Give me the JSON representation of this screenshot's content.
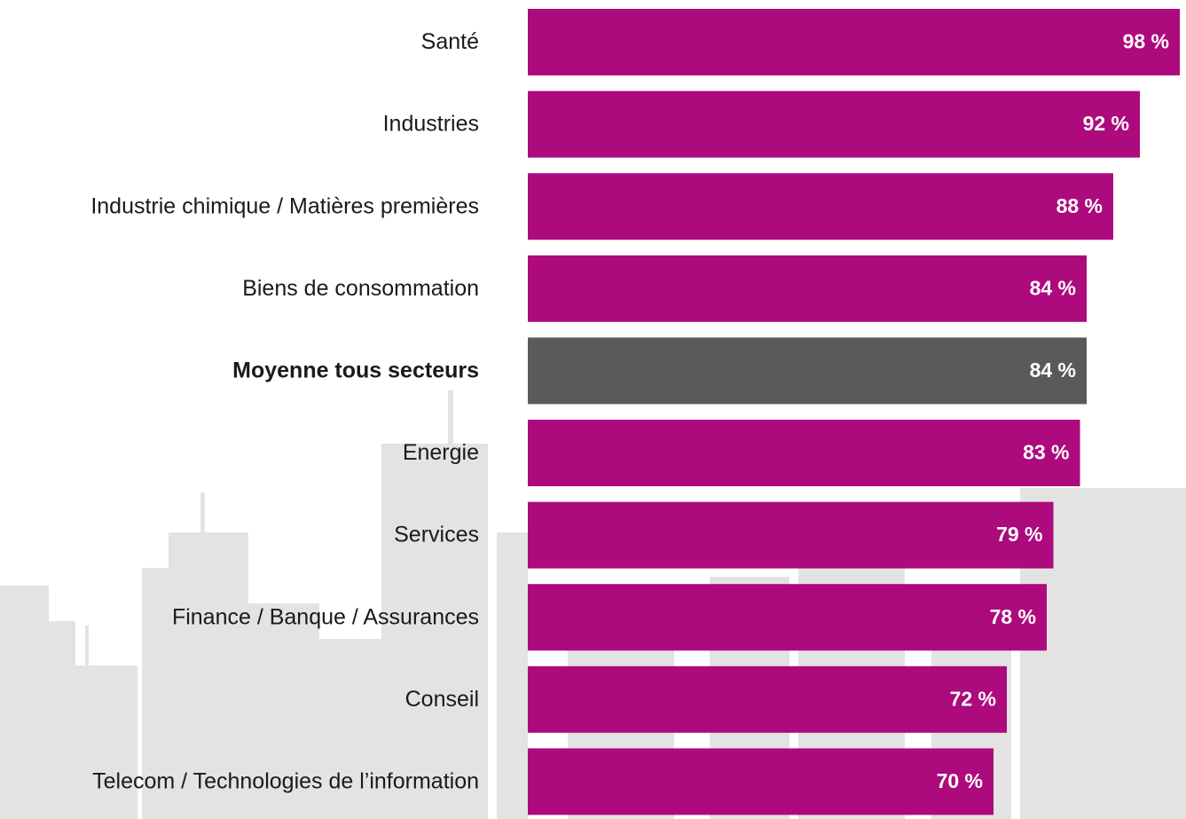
{
  "chart_data": {
    "type": "barh",
    "categories": [
      "Santé",
      "Industries",
      "Industrie chimique / Matières premières",
      "Biens de consommation",
      "Moyenne tous secteurs",
      "Energie",
      "Services",
      "Finance / Banque / Assurances",
      "Conseil",
      "Telecom / Technologies de l’information"
    ],
    "values": [
      98,
      92,
      88,
      84,
      84,
      83,
      79,
      78,
      72,
      70
    ],
    "value_labels": [
      "98 %",
      "92 %",
      "88 %",
      "84 %",
      "84 %",
      "83 %",
      "79 %",
      "78 %",
      "72 %",
      "70 %"
    ],
    "colors": [
      "#ad0a7e",
      "#ad0a7e",
      "#ad0a7e",
      "#ad0a7e",
      "#5a5a5a",
      "#ad0a7e",
      "#ad0a7e",
      "#ad0a7e",
      "#ad0a7e",
      "#ad0a7e"
    ]
  }
}
